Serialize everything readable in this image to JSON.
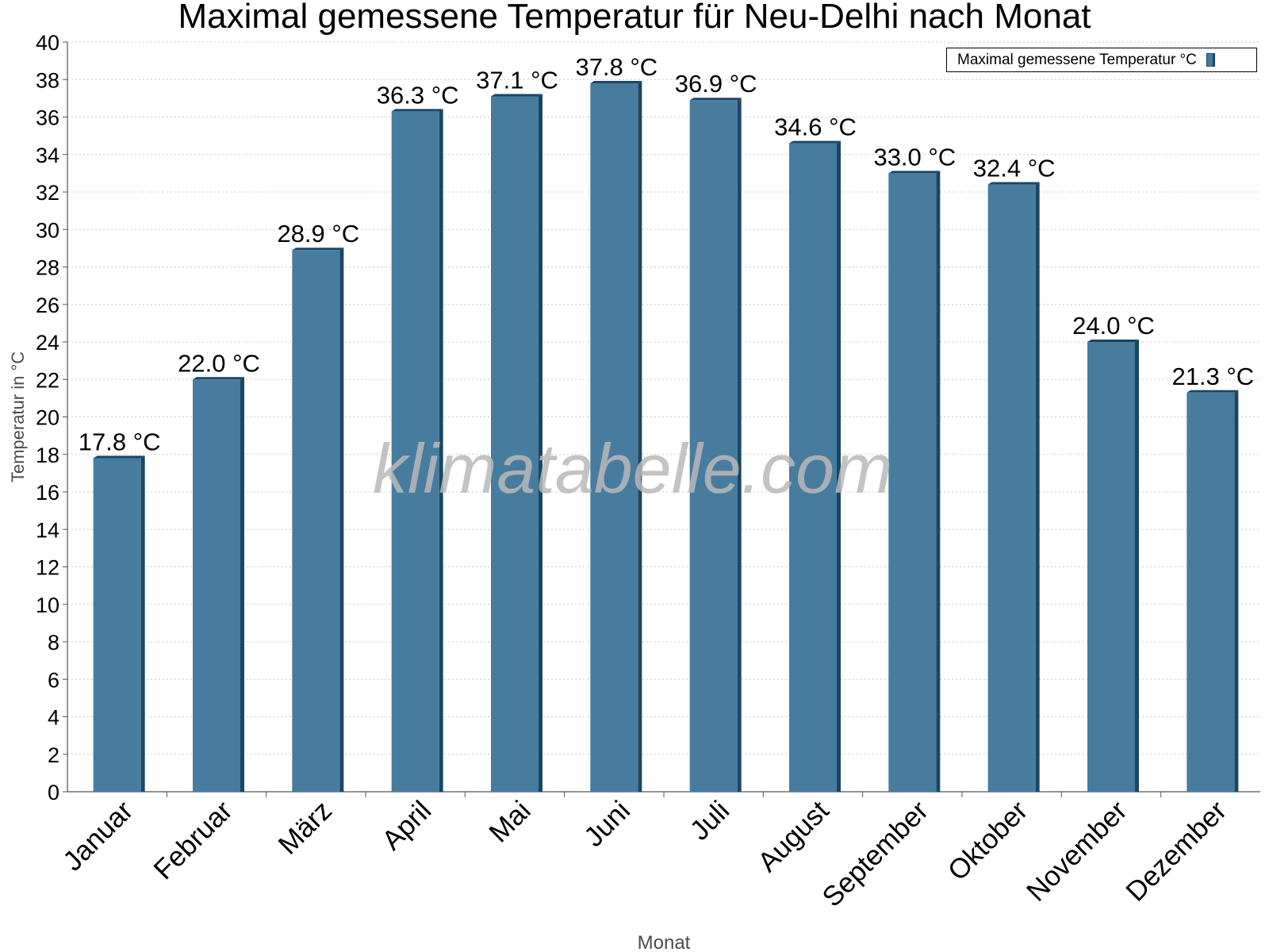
{
  "chart_data": {
    "type": "bar",
    "title": "Maximal gemessene Temperatur für Neu-Delhi nach Monat",
    "xlabel": "Monat",
    "ylabel": "Temperatur in °C",
    "categories": [
      "Januar",
      "Februar",
      "März",
      "April",
      "Mai",
      "Juni",
      "Juli",
      "August",
      "September",
      "Oktober",
      "November",
      "Dezember"
    ],
    "series": [
      {
        "name": "Maximal gemessene Temperatur °C",
        "values": [
          17.8,
          22.0,
          28.9,
          36.3,
          37.1,
          37.8,
          36.9,
          34.6,
          33.0,
          32.4,
          24.0,
          21.3
        ]
      }
    ],
    "data_labels": [
      "17.8 °C",
      "22.0 °C",
      "28.9 °C",
      "36.3 °C",
      "37.1 °C",
      "37.8 °C",
      "36.9 °C",
      "34.6 °C",
      "33.0 °C",
      "32.4 °C",
      "24.0 °C",
      "21.3 °C"
    ],
    "ylim": [
      0,
      40
    ],
    "yticks": [
      0,
      2,
      4,
      6,
      8,
      10,
      12,
      14,
      16,
      18,
      20,
      22,
      24,
      26,
      28,
      30,
      32,
      34,
      36,
      38,
      40
    ],
    "grid": "horizontal dotted",
    "legend_position": "top-right",
    "colors": {
      "bar": "#477c9f",
      "bar_edge": "#1b4663",
      "axis_title": "#4a4a4a",
      "watermark": "#b9b9b9"
    },
    "watermark": "klimatabelle.com"
  }
}
